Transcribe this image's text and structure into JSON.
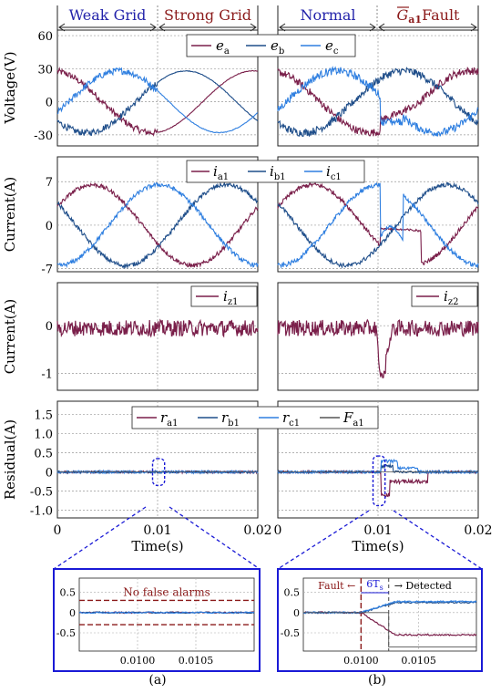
{
  "colors": {
    "ea": "#7a1f4a",
    "eb": "#1f4e8a",
    "ec": "#2f7fe0",
    "F": "#555555",
    "header_blue": "#2222aa",
    "header_red": "#8b1a1a",
    "zoom_border": "#1a1ad6",
    "threshold": "#8b1a1a"
  },
  "headers": {
    "weak": "Weak Grid",
    "strong": "Strong Grid",
    "normal": "Normal",
    "fault_sym": "G",
    "fault_sub": "a1",
    "fault_word": "Fault"
  },
  "captions": {
    "a": "(a)",
    "b": "(b)"
  },
  "annotations": {
    "no_false": "No false alarms",
    "fault": "Fault",
    "six_t": "6T",
    "six_t_sub": "s",
    "detected": "Detected"
  },
  "chart_data": [
    {
      "id": "voltage",
      "type": "line",
      "ylabel": "Voltage(V)",
      "yticks": [
        "60",
        "30",
        "0",
        "-30"
      ],
      "ylim": [
        -40,
        65
      ],
      "xlim": [
        0,
        0.02
      ],
      "legend": [
        {
          "base": "e",
          "sub": "a"
        },
        {
          "base": "e",
          "sub": "b"
        },
        {
          "base": "e",
          "sub": "c"
        }
      ],
      "amplitude": 28,
      "grid": true
    },
    {
      "id": "current",
      "type": "line",
      "ylabel": "Current(A)",
      "yticks": [
        "7",
        "0",
        "-7"
      ],
      "ylim": [
        -7.5,
        11
      ],
      "xlim": [
        0,
        0.02
      ],
      "legend": [
        {
          "base": "i",
          "sub": "a1"
        },
        {
          "base": "i",
          "sub": "b1"
        },
        {
          "base": "i",
          "sub": "c1"
        }
      ],
      "amplitude": 6.5,
      "grid": true
    },
    {
      "id": "izone",
      "type": "line",
      "ylabel": "Current(A)",
      "yticks": [
        "0",
        "-1"
      ],
      "ylim": [
        -1.35,
        0.9
      ],
      "xlim": [
        0,
        0.02
      ],
      "legend_a": {
        "base": "i",
        "sub": "z1"
      },
      "legend_b": {
        "base": "i",
        "sub": "z2"
      },
      "grid": true
    },
    {
      "id": "residual",
      "type": "line",
      "ylabel": "Residual(A)",
      "yticks": [
        "1.5",
        "1.0",
        "0.5",
        "0",
        "-0.5",
        "-1.0"
      ],
      "ylim": [
        -1.2,
        1.85
      ],
      "xlim": [
        0,
        0.02
      ],
      "xticks": [
        "0",
        "0.01",
        "0.02"
      ],
      "xlabel": "Time(s)",
      "legend": [
        {
          "base": "r",
          "sub": "a1"
        },
        {
          "base": "r",
          "sub": "b1"
        },
        {
          "base": "r",
          "sub": "c1"
        },
        {
          "base": "F",
          "sub": "a1"
        }
      ],
      "grid": true
    },
    {
      "id": "zoom",
      "type": "line",
      "xlim": [
        0.0095,
        0.011
      ],
      "yticks": [
        "0.5",
        "0",
        "-0.5"
      ],
      "ylim": [
        -0.95,
        0.85
      ],
      "xticks": [
        "0.0100",
        "0.0105"
      ],
      "threshold": 0.3,
      "fault_time": 0.01,
      "detect_time": 0.01024
    }
  ]
}
